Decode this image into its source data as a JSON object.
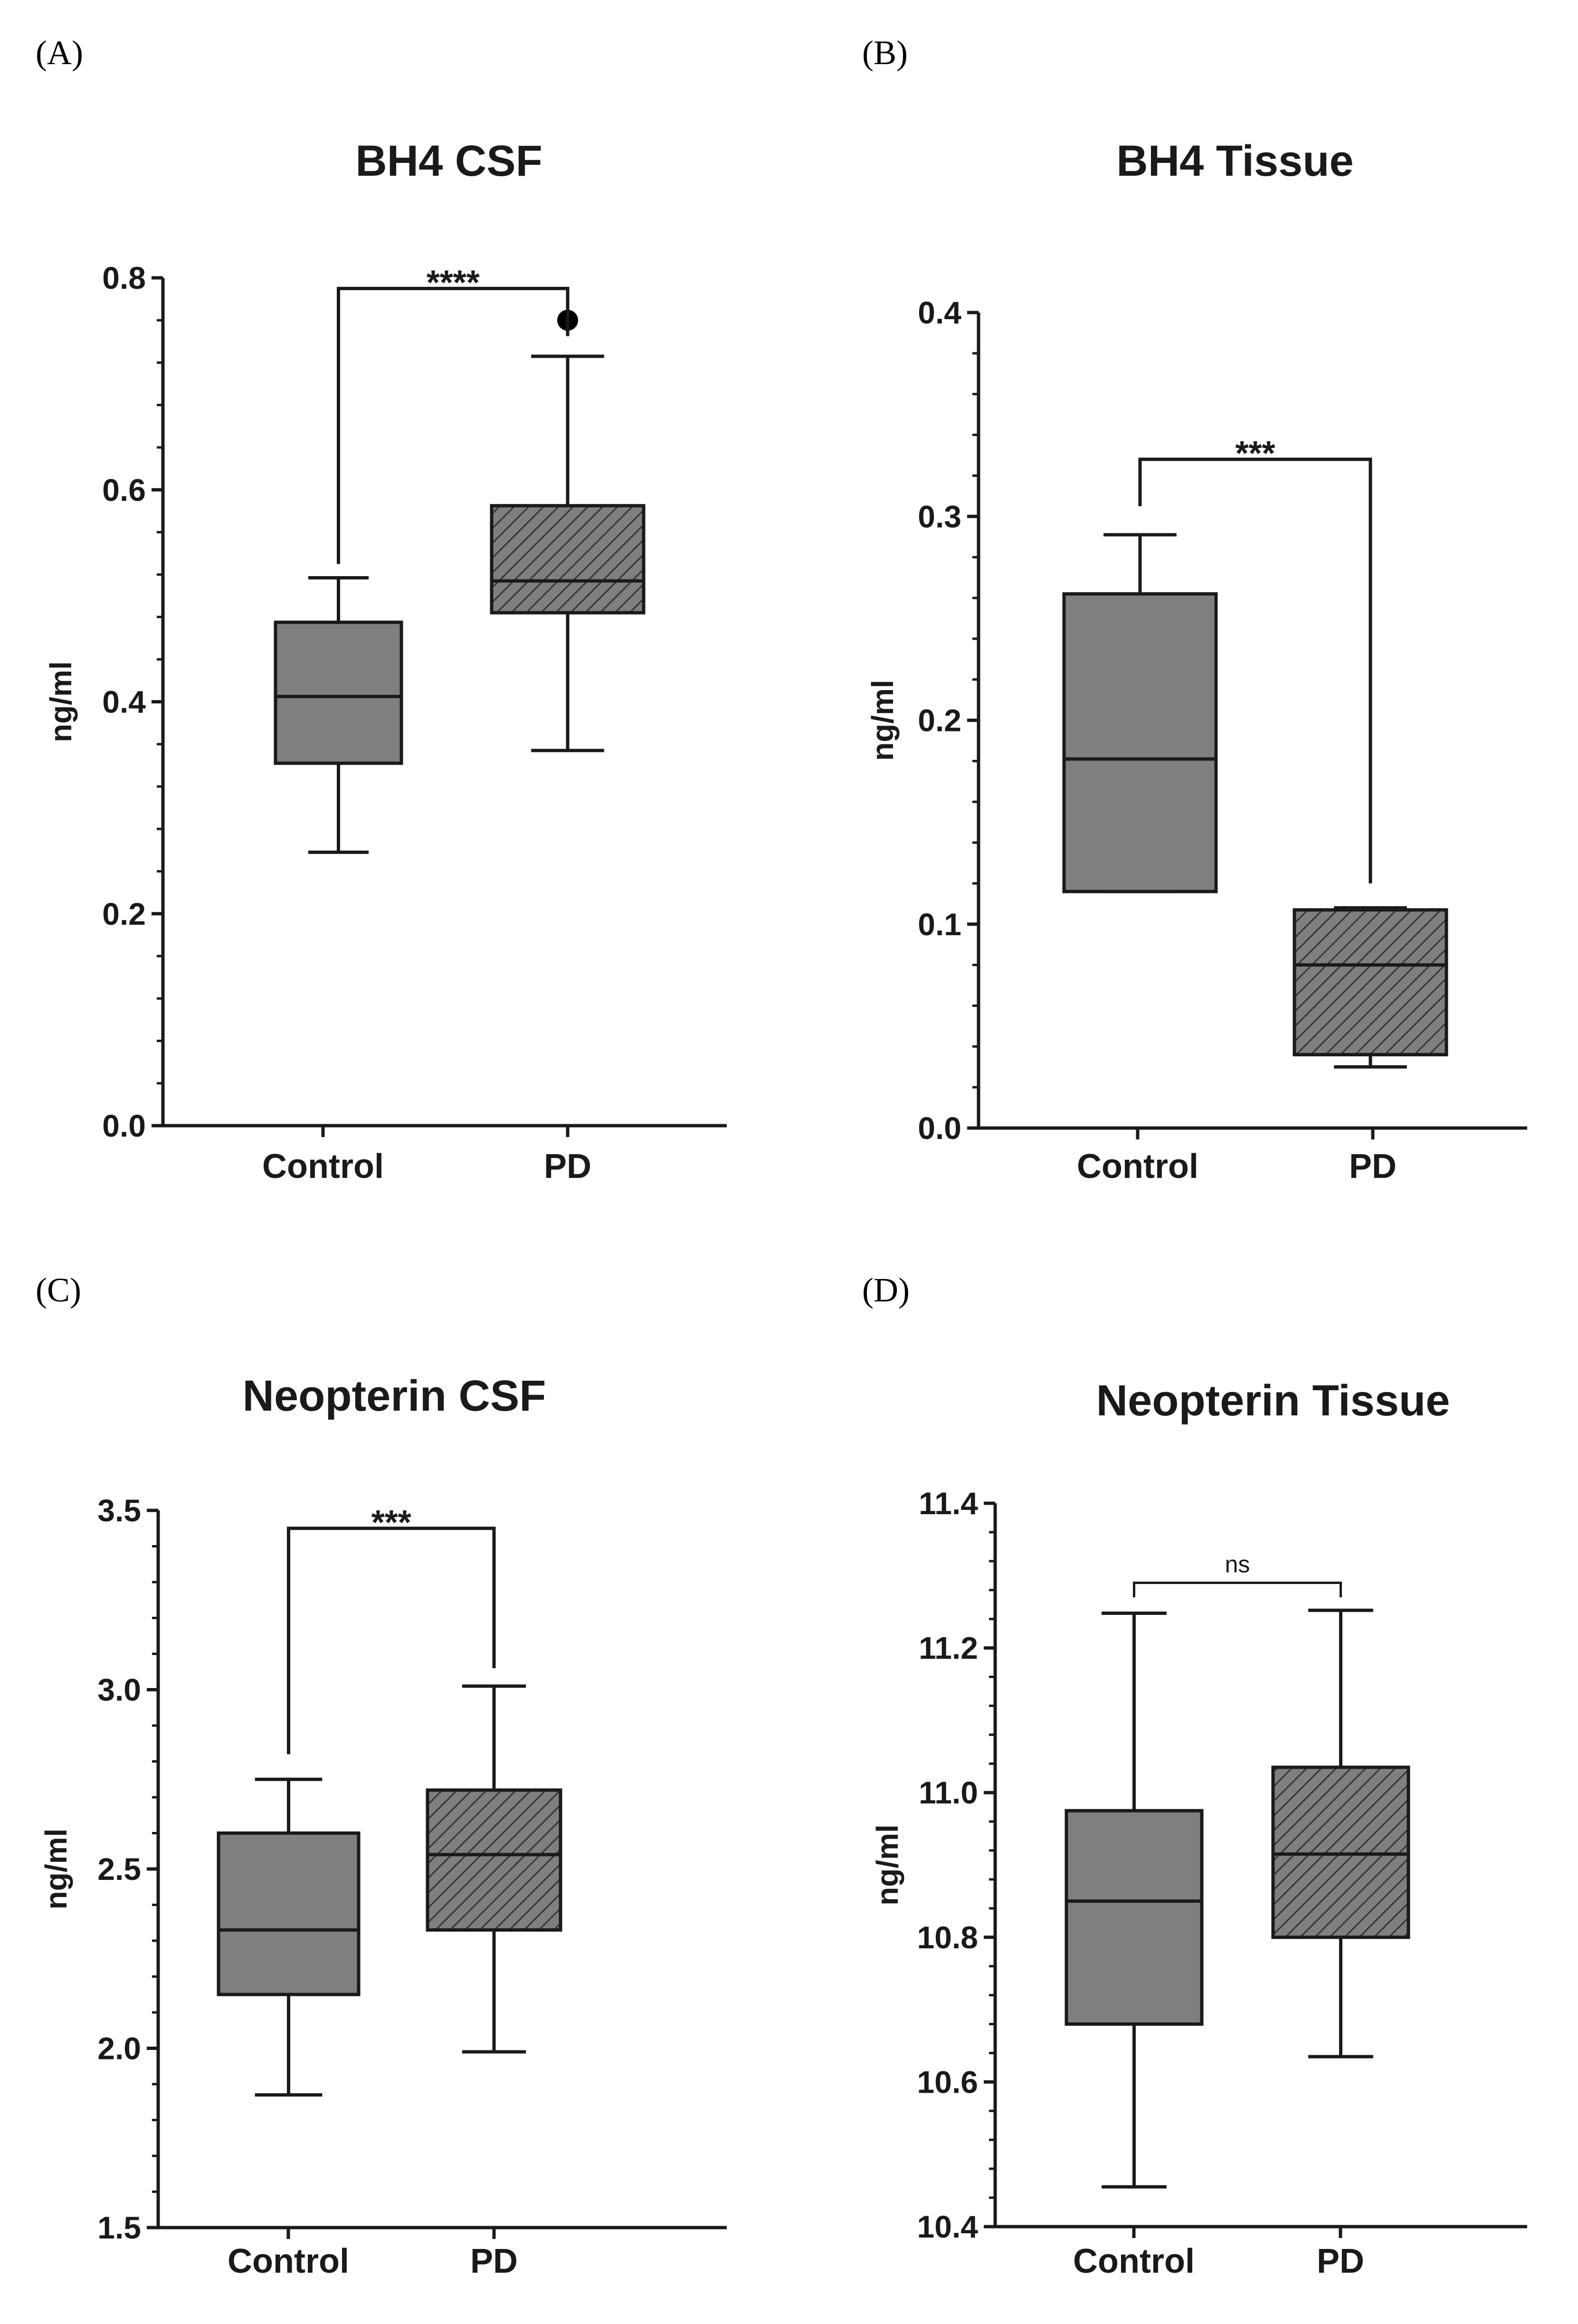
{
  "colors": {
    "box_fill": "#7f7f7f",
    "stroke": "#1a1a1a",
    "hatch": "#333333",
    "background": "#ffffff"
  },
  "chart_data": [
    {
      "panel_label": "(A)",
      "type": "box",
      "title": "BH4 CSF",
      "xlabel": "",
      "ylabel": "ng/ml",
      "ylim": [
        0.0,
        0.8
      ],
      "yticks": [
        0.0,
        0.2,
        0.4,
        0.6,
        0.8
      ],
      "ytick_labels": [
        "0.0",
        "0.2",
        "0.4",
        "0.6",
        "0.8"
      ],
      "minor_ticks_per_major": 5,
      "categories": [
        "Control",
        "PD"
      ],
      "boxes": [
        {
          "name": "Control",
          "min": 0.258,
          "q1": 0.342,
          "median": 0.405,
          "q3": 0.475,
          "max": 0.517,
          "pattern": "solid",
          "outliers": []
        },
        {
          "name": "PD",
          "min": 0.354,
          "q1": 0.484,
          "median": 0.514,
          "q3": 0.585,
          "max": 0.726,
          "pattern": "hatched",
          "outliers": [
            0.76
          ]
        }
      ],
      "significance": {
        "label": "****",
        "style": "bold",
        "bracket_y": 0.79,
        "left_end": 0.53,
        "right_end": 0.745
      }
    },
    {
      "panel_label": "(B)",
      "type": "box",
      "title": "BH4 Tissue",
      "xlabel": "",
      "ylabel": "ng/ml",
      "ylim": [
        0.0,
        0.4
      ],
      "yticks": [
        0.0,
        0.1,
        0.2,
        0.3,
        0.4
      ],
      "ytick_labels": [
        "0.0",
        "0.1",
        "0.2",
        "0.3",
        "0.4"
      ],
      "minor_ticks_per_major": 5,
      "categories": [
        "Control",
        "PD"
      ],
      "boxes": [
        {
          "name": "Control",
          "min": 0.116,
          "q1": 0.116,
          "median": 0.181,
          "q3": 0.262,
          "max": 0.291,
          "pattern": "solid",
          "outliers": []
        },
        {
          "name": "PD",
          "min": 0.03,
          "q1": 0.036,
          "median": 0.08,
          "q3": 0.107,
          "max": 0.108,
          "pattern": "hatched",
          "outliers": []
        }
      ],
      "significance": {
        "label": "***",
        "style": "bold",
        "bracket_y": 0.328,
        "left_end": 0.305,
        "right_end": 0.12
      }
    },
    {
      "panel_label": "(C)",
      "type": "box",
      "title": "Neopterin  CSF",
      "xlabel": "",
      "ylabel": "ng/ml",
      "ylim": [
        1.5,
        3.5
      ],
      "yticks": [
        1.5,
        2.0,
        2.5,
        3.0,
        3.5
      ],
      "ytick_labels": [
        "1.5",
        "2.0",
        "2.5",
        "3.0",
        "3.5"
      ],
      "minor_ticks_per_major": 5,
      "categories": [
        "Control",
        "PD"
      ],
      "boxes": [
        {
          "name": "Control",
          "min": 1.87,
          "q1": 2.15,
          "median": 2.33,
          "q3": 2.6,
          "max": 2.75,
          "pattern": "solid",
          "outliers": []
        },
        {
          "name": "PD",
          "min": 1.99,
          "q1": 2.33,
          "median": 2.54,
          "q3": 2.72,
          "max": 3.01,
          "pattern": "hatched",
          "outliers": []
        }
      ],
      "significance": {
        "label": "***",
        "style": "bold",
        "bracket_y": 3.45,
        "left_end": 2.82,
        "right_end": 3.06
      }
    },
    {
      "panel_label": "(D)",
      "type": "box",
      "title": "Neopterin Tissue",
      "xlabel": "",
      "ylabel": "ng/ml",
      "ylim": [
        10.4,
        11.4
      ],
      "yticks": [
        10.4,
        10.6,
        10.8,
        11.0,
        11.2,
        11.4
      ],
      "ytick_labels": [
        "10.4",
        "10.6",
        "10.8",
        "11.0",
        "11.2",
        "11.4"
      ],
      "minor_ticks_per_major": 5,
      "categories": [
        "Control",
        "PD"
      ],
      "boxes": [
        {
          "name": "Control",
          "min": 10.455,
          "q1": 10.68,
          "median": 10.85,
          "q3": 10.975,
          "max": 11.248,
          "pattern": "solid",
          "outliers": []
        },
        {
          "name": "PD",
          "min": 10.635,
          "q1": 10.8,
          "median": 10.915,
          "q3": 11.035,
          "max": 11.252,
          "pattern": "hatched",
          "outliers": []
        }
      ],
      "significance": {
        "label": "ns",
        "style": "normal",
        "bracket_y": 11.29,
        "left_end": 11.27,
        "right_end": 11.27
      }
    }
  ]
}
